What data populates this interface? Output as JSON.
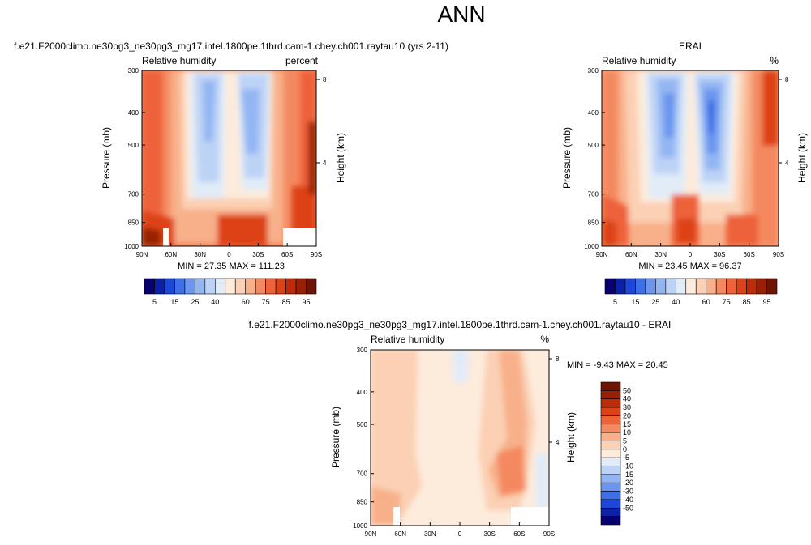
{
  "page_title": "ANN",
  "colors": {
    "rh_scale": [
      "#08006e",
      "#0b22a8",
      "#1d48d7",
      "#3f6fe6",
      "#6b95ee",
      "#93b6f3",
      "#bdd3f6",
      "#e1ecf8",
      "#fdebdc",
      "#fbd0b4",
      "#f8b08a",
      "#f48961",
      "#ee623a",
      "#dd4217",
      "#bf2a09",
      "#982005",
      "#6e1404"
    ],
    "diff_scale": [
      "#08006e",
      "#0b22a8",
      "#1d48d7",
      "#3f6fe6",
      "#6b95ee",
      "#93b6f3",
      "#bdd3f6",
      "#e1ecf8",
      "#fdebdc",
      "#fbd0b4",
      "#f8b08a",
      "#f48961",
      "#ee623a",
      "#dd4217",
      "#bf2a09",
      "#982005",
      "#6e1404"
    ]
  },
  "colorbar_rh_labels": [
    "5",
    "15",
    "25",
    "40",
    "60",
    "75",
    "85",
    "95"
  ],
  "colorbar_diff_labels": [
    "50",
    "40",
    "30",
    "20",
    "15",
    "10",
    "5",
    "0",
    "-5",
    "-10",
    "-15",
    "-20",
    "-30",
    "-40",
    "-50"
  ],
  "chart_data": [
    {
      "id": "model",
      "type": "heatmap",
      "title": "f.e21.F2000climo.ne30pg3_ne30pg3_mg17.intel.1800pe.1thrd.cam-1.chey.ch001.raytau10 (yrs 2-11)",
      "left_label": "Relative humidity",
      "right_label": "percent",
      "ylabel": "Pressure (mb)",
      "y2label": "Height (km)",
      "x_ticks": [
        "90N",
        "60N",
        "30N",
        "0",
        "30S",
        "60S",
        "90S"
      ],
      "y_ticks": [
        "300",
        "400",
        "500",
        "700",
        "850",
        "1000"
      ],
      "y2_ticks": [
        "8",
        "4"
      ],
      "xlim": [
        90,
        -90
      ],
      "ylim": [
        1000,
        300
      ],
      "stats": "MIN =  27.35   MAX = 111.23",
      "min": 27.35,
      "max": 111.23,
      "levels": [
        5,
        10,
        15,
        20,
        25,
        30,
        40,
        50,
        60,
        70,
        75,
        80,
        85,
        90,
        95
      ]
    },
    {
      "id": "obs",
      "type": "heatmap",
      "title": "ERAI",
      "left_label": "Relative humidity",
      "right_label": "%",
      "ylabel": "Pressure (mb)",
      "y2label": "Height (km)",
      "x_ticks": [
        "90N",
        "60N",
        "30N",
        "0",
        "30S",
        "60S",
        "90S"
      ],
      "y_ticks": [
        "300",
        "400",
        "500",
        "700",
        "850",
        "1000"
      ],
      "y2_ticks": [
        "8",
        "4"
      ],
      "xlim": [
        90,
        -90
      ],
      "ylim": [
        1000,
        300
      ],
      "stats": "MIN =  23.45   MAX =  96.37",
      "min": 23.45,
      "max": 96.37,
      "levels": [
        5,
        10,
        15,
        20,
        25,
        30,
        40,
        50,
        60,
        70,
        75,
        80,
        85,
        90,
        95
      ]
    },
    {
      "id": "diff",
      "type": "heatmap",
      "title": "f.e21.F2000climo.ne30pg3_ne30pg3_mg17.intel.1800pe.1thrd.cam-1.chey.ch001.raytau10 - ERAI",
      "left_label": "Relative humidity",
      "right_label": "%",
      "ylabel": "Pressure (mb)",
      "y2label": "Height (km)",
      "x_ticks": [
        "90N",
        "60N",
        "30N",
        "0",
        "30S",
        "60S",
        "90S"
      ],
      "y_ticks": [
        "300",
        "400",
        "500",
        "700",
        "850",
        "1000"
      ],
      "y2_ticks": [
        "8",
        "4"
      ],
      "xlim": [
        90,
        -90
      ],
      "ylim": [
        1000,
        300
      ],
      "stats": "MIN =  -9.43   MAX =  20.45",
      "min": -9.43,
      "max": 20.45,
      "levels": [
        -50,
        -40,
        -30,
        -20,
        -15,
        -10,
        -5,
        0,
        5,
        10,
        15,
        20,
        30,
        40,
        50
      ]
    }
  ]
}
